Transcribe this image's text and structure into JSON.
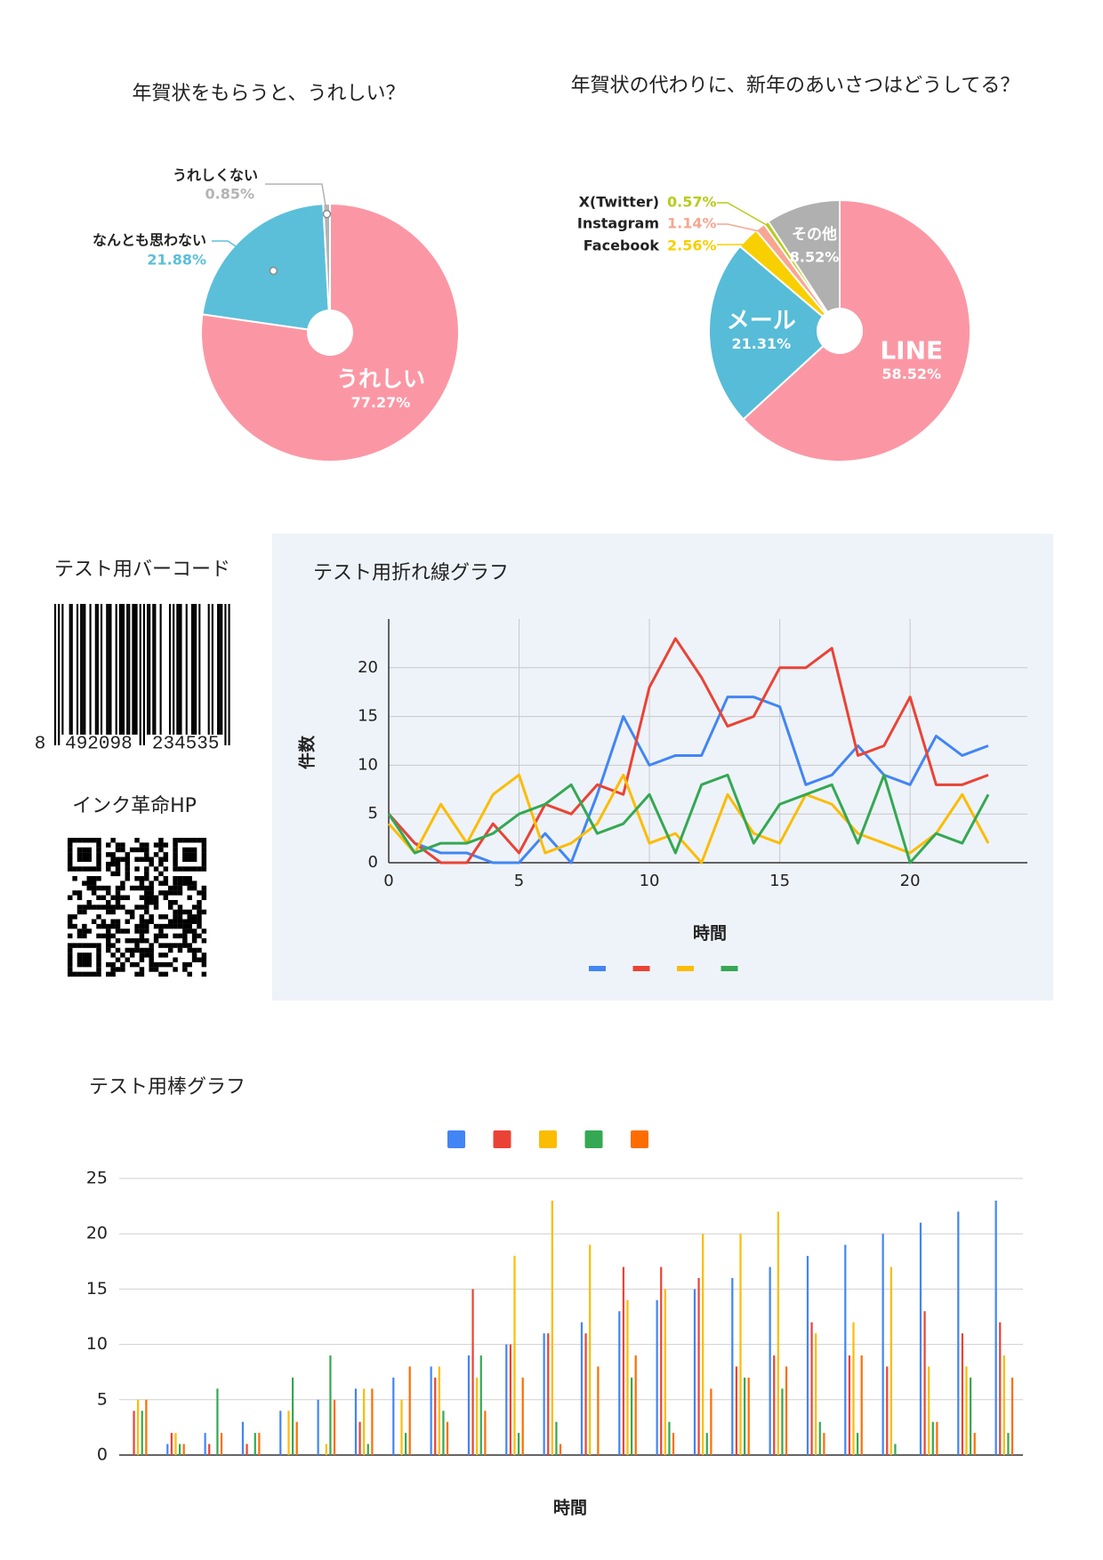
{
  "chart_data": [
    {
      "type": "pie",
      "title": "年賀状をもらうと、うれしい？",
      "categories": [
        "うれしい",
        "なんとも思わない",
        "うれしくない"
      ],
      "values": [
        77.27,
        21.88,
        0.85
      ],
      "value_labels": [
        "77.27%",
        "21.88%",
        "0.85%"
      ],
      "colors": [
        "#fb97a4",
        "#5bbfd9",
        "#b3b3b3"
      ]
    },
    {
      "type": "pie",
      "title": "年賀状の代わりに、新年のあいさつはどうしてる？",
      "categories": [
        "LINE",
        "メール",
        "Facebook",
        "Instagram",
        "X(Twitter)",
        "その他"
      ],
      "values": [
        58.52,
        21.31,
        2.56,
        1.14,
        0.57,
        8.52
      ],
      "value_labels": [
        "58.52%",
        "21.31%",
        "2.56%",
        "1.14%",
        "0.57%",
        "8.52%"
      ],
      "colors": [
        "#fb97a4",
        "#56bcd8",
        "#f8cf00",
        "#f7a693",
        "#b7cc1b",
        "#b0b0b0"
      ]
    },
    {
      "type": "line",
      "title": "テスト用折れ線グラフ",
      "x_label": "時間",
      "y_label": "件数",
      "x": [
        0,
        1,
        2,
        3,
        4,
        5,
        6,
        7,
        8,
        9,
        10,
        11,
        12,
        13,
        14,
        15,
        16,
        17,
        18,
        19,
        20,
        21,
        22,
        23
      ],
      "series": [
        {
          "color": "#4285f4",
          "values": [
            5,
            2,
            1,
            1,
            0,
            0,
            3,
            0,
            7,
            15,
            10,
            11,
            11,
            17,
            17,
            16,
            8,
            9,
            12,
            9,
            8,
            13,
            11,
            12
          ]
        },
        {
          "color": "#ea4335",
          "values": [
            5,
            2,
            0,
            0,
            4,
            1,
            6,
            5,
            8,
            7,
            18,
            23,
            19,
            14,
            15,
            20,
            20,
            22,
            11,
            12,
            17,
            8,
            8,
            9
          ]
        },
        {
          "color": "#fbbc04",
          "values": [
            4,
            1,
            6,
            2,
            7,
            9,
            1,
            2,
            4,
            9,
            2,
            3,
            0,
            7,
            3,
            2,
            7,
            6,
            3,
            2,
            1,
            3,
            7,
            2
          ]
        },
        {
          "color": "#34a853",
          "values": [
            5,
            1,
            2,
            2,
            3,
            5,
            6,
            8,
            3,
            4,
            7,
            1,
            8,
            9,
            2,
            6,
            7,
            8,
            2,
            9,
            0,
            3,
            2,
            7
          ]
        }
      ],
      "xlim": [
        0,
        24.5
      ],
      "ylim": [
        0,
        25
      ],
      "xticks": [
        0,
        5,
        10,
        15,
        20
      ],
      "yticks": [
        0,
        5,
        10,
        15,
        20
      ],
      "grid": true,
      "background": "#eef3f9"
    },
    {
      "type": "bar",
      "title": "テスト用棒グラフ",
      "x_label": "時間",
      "categories": [
        null,
        null,
        null,
        null,
        null,
        null,
        null,
        null,
        null,
        null,
        null,
        null,
        null,
        null,
        null,
        null,
        null,
        null,
        null,
        null,
        null,
        null,
        null,
        null
      ],
      "series": [
        {
          "color": "#4285f4",
          "values": [
            0,
            1,
            2,
            3,
            4,
            5,
            6,
            7,
            8,
            9,
            10,
            11,
            12,
            13,
            14,
            15,
            16,
            17,
            18,
            19,
            20,
            21,
            22,
            23
          ]
        },
        {
          "color": "#ea4335",
          "values": [
            4,
            2,
            1,
            1,
            0,
            0,
            3,
            0,
            7,
            15,
            10,
            11,
            11,
            17,
            17,
            16,
            8,
            9,
            12,
            9,
            8,
            13,
            11,
            12
          ]
        },
        {
          "color": "#fbbc04",
          "values": [
            5,
            2,
            0,
            0,
            4,
            1,
            6,
            5,
            8,
            7,
            18,
            23,
            19,
            14,
            15,
            20,
            20,
            22,
            11,
            12,
            17,
            8,
            8,
            9
          ]
        },
        {
          "color": "#34a853",
          "values": [
            4,
            1,
            6,
            2,
            7,
            9,
            1,
            2,
            4,
            9,
            2,
            3,
            0,
            7,
            3,
            2,
            7,
            6,
            3,
            2,
            1,
            3,
            7,
            2
          ]
        },
        {
          "color": "#ff6d01",
          "values": [
            5,
            1,
            2,
            2,
            3,
            5,
            6,
            8,
            3,
            4,
            7,
            1,
            8,
            9,
            2,
            6,
            7,
            8,
            2,
            9,
            0,
            3,
            2,
            7
          ]
        }
      ],
      "ylim": [
        0,
        25
      ],
      "yticks": [
        0,
        5,
        10,
        15,
        20,
        25
      ],
      "grid": true
    }
  ],
  "barcode": {
    "title": "テスト用バーコード",
    "digits": [
      "8",
      "492098",
      "234535"
    ]
  },
  "qr_code": {
    "title": "インク革命HP"
  }
}
